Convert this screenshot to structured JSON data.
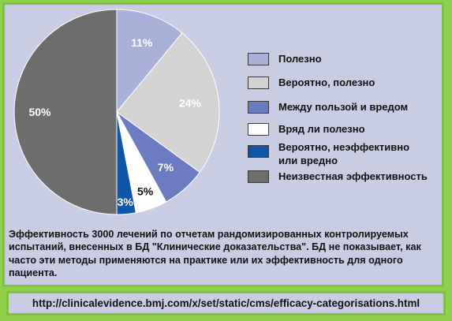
{
  "chart_data": {
    "type": "pie",
    "slices": [
      {
        "label": "Полезно",
        "value": 11,
        "color": "#a9b0d9",
        "text_color": "#ffffff"
      },
      {
        "label": "Вероятно, полезно",
        "value": 24,
        "color": "#d3d3d3",
        "text_color": "#ffffff"
      },
      {
        "label": "Между пользой и вредом",
        "value": 7,
        "color": "#6b7dc0",
        "text_color": "#ffffff"
      },
      {
        "label": "Вряд ли полезно",
        "value": 5,
        "color": "#ffffff",
        "text_color": "#111111"
      },
      {
        "label": "Вероятно, неэффективно или вредно",
        "value": 3,
        "color": "#1156a6",
        "text_color": "#ffffff"
      },
      {
        "label": "Неизвестная эффективность",
        "value": 50,
        "color": "#6d6d6d",
        "text_color": "#ffffff"
      }
    ],
    "value_suffix": "%",
    "legend_position": "right"
  },
  "legend": {
    "items": [
      {
        "label": "Полезно",
        "color": "#a9b0d9"
      },
      {
        "label": "Вероятно, полезно",
        "color": "#d3d3d3"
      },
      {
        "label": "Между пользой и вредом",
        "color": "#6b7dc0"
      },
      {
        "label": "Вряд ли полезно",
        "color": "#ffffff"
      },
      {
        "label": "Вероятно, неэффективно или вредно",
        "color": "#1156a6"
      },
      {
        "label": "Неизвестная эффективность",
        "color": "#6d6d6d"
      }
    ]
  },
  "caption": "Эффективность 3000 лечений по отчетам рандомизированных контролируемых испытаний, внесенных в БД \"Клинические доказательства\". БД не показывает, как часто эти методы применяются на практике или их эффективность для одного пациента.",
  "url": "http://clinicalevidence.bmj.com/x/set/static/cms/efficacy-categorisations.html",
  "colors": {
    "background": "#8fd14f",
    "panel": "#c9cde4",
    "border": "#7dc242"
  }
}
